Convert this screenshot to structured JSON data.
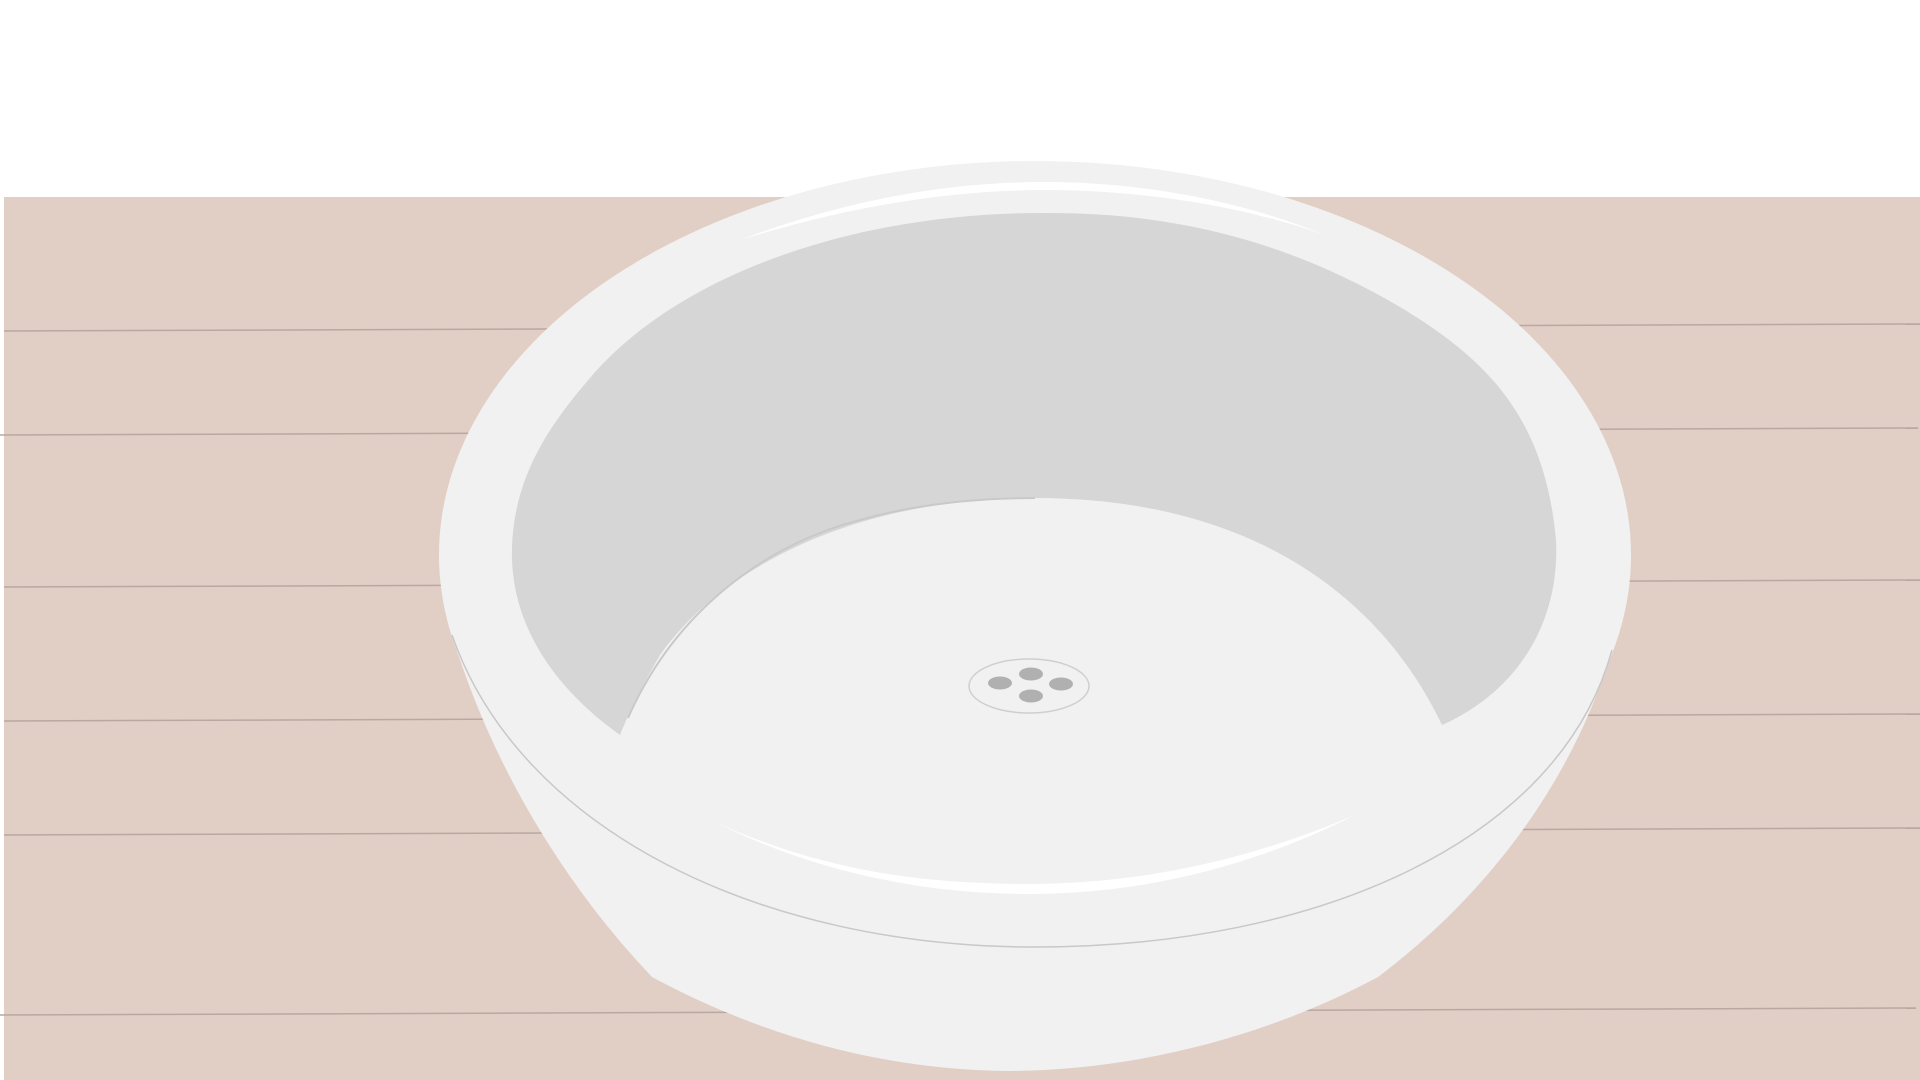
{
  "scene": {
    "background": "#ffffff",
    "countertop_color": "#e1cfc6",
    "countertop_line_color": "#b8a8a2",
    "basin_outer_color": "#f2f1f1",
    "basin_inner_color": "#d6d6d6",
    "basin_edge_color": "#c8c8c8",
    "highlight_color": "#ffffff",
    "drain_hole_color": "#b0b0b0",
    "drain_ring_color": "#cfcfcf"
  },
  "icons": {
    "basin": "vessel-sink-icon",
    "drain": "drain-icon"
  }
}
